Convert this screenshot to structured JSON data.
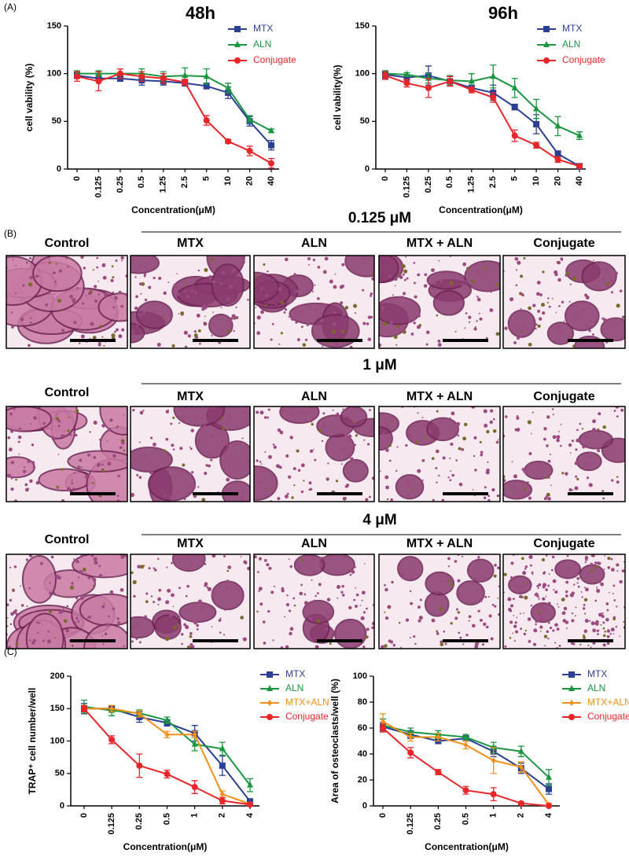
{
  "panel_labels": [
    "(A)",
    "(B)",
    "(C)"
  ],
  "chart_data": [
    {
      "type": "line",
      "title": "48h",
      "y_label": "cell vability (%)",
      "x_label": "Concentration(μM)",
      "categories": [
        "0",
        "0.125",
        "0.25",
        "0.5",
        "1.25",
        "2.5",
        "5",
        "10",
        "20",
        "40"
      ],
      "ylim": [
        0,
        150
      ],
      "yticks": [
        0,
        50,
        100,
        150
      ],
      "legend": "upper right",
      "series": [
        {
          "name": "MTX",
          "color": "#2b3f94",
          "marker": "square",
          "values": [
            98,
            95,
            95,
            93,
            92,
            90,
            87,
            80,
            50,
            25
          ],
          "errors": [
            3,
            3,
            3,
            5,
            4,
            3,
            3,
            6,
            5,
            5
          ]
        },
        {
          "name": "ALN",
          "color": "#1a9641",
          "marker": "triangle",
          "values": [
            100,
            100,
            100,
            100,
            97,
            98,
            97,
            85,
            52,
            40
          ],
          "errors": [
            3,
            3,
            5,
            5,
            5,
            8,
            8,
            5,
            4,
            2
          ]
        },
        {
          "name": "Conjugate",
          "color": "#e8262a",
          "marker": "circle",
          "values": [
            97,
            92,
            100,
            97,
            95,
            91,
            51,
            29,
            19,
            6
          ],
          "errors": [
            5,
            10,
            5,
            5,
            5,
            3,
            5,
            2,
            5,
            5
          ]
        }
      ]
    },
    {
      "type": "line",
      "title": "96h",
      "y_label": "cell vability(%)",
      "x_label": "Concentration(μM)",
      "categories": [
        "0",
        "0.125",
        "0.25",
        "0.5",
        "1.25",
        "2.5",
        "5",
        "10",
        "20",
        "40"
      ],
      "ylim": [
        0,
        150
      ],
      "yticks": [
        0,
        50,
        100,
        150
      ],
      "legend": "upper right",
      "series": [
        {
          "name": "MTX",
          "color": "#2b3f94",
          "marker": "square",
          "values": [
            99,
            96,
            98,
            92,
            85,
            80,
            65,
            47,
            16,
            3
          ],
          "errors": [
            4,
            3,
            10,
            5,
            3,
            8,
            3,
            10,
            3,
            1
          ]
        },
        {
          "name": "ALN",
          "color": "#1a9641",
          "marker": "triangle",
          "values": [
            100,
            99,
            95,
            93,
            92,
            97,
            85,
            63,
            45,
            35
          ],
          "errors": [
            3,
            2,
            5,
            5,
            8,
            12,
            10,
            10,
            10,
            4
          ]
        },
        {
          "name": "Conjugate",
          "color": "#e8262a",
          "marker": "circle",
          "values": [
            98,
            90,
            85,
            92,
            83,
            75,
            35,
            25,
            10,
            3
          ],
          "errors": [
            4,
            4,
            10,
            5,
            3,
            5,
            6,
            3,
            3,
            1
          ]
        }
      ]
    },
    {
      "type": "line",
      "y_label": "TRAP⁺ cell number/well",
      "x_label": "Concentration(μM)",
      "categories": [
        "0",
        "0.125",
        "0.25",
        "0.5",
        "1",
        "2",
        "4"
      ],
      "ylim": [
        0,
        200
      ],
      "yticks": [
        0,
        50,
        100,
        150,
        200
      ],
      "legend": "upper right",
      "series": [
        {
          "name": "MTX",
          "color": "#2b3f94",
          "marker": "square",
          "values": [
            150,
            150,
            137,
            128,
            112,
            62,
            7
          ],
          "errors": [
            8,
            5,
            8,
            5,
            12,
            15,
            3
          ]
        },
        {
          "name": "ALN",
          "color": "#1a9641",
          "marker": "triangle",
          "values": [
            153,
            147,
            143,
            132,
            95,
            88,
            32
          ],
          "errors": [
            10,
            8,
            5,
            5,
            10,
            10,
            10
          ]
        },
        {
          "name": "MTX+ALN",
          "color": "#f39019",
          "marker": "diamond",
          "values": [
            150,
            150,
            142,
            110,
            110,
            18,
            3
          ],
          "errors": [
            5,
            5,
            5,
            5,
            5,
            5,
            2
          ]
        },
        {
          "name": "Conjugate",
          "color": "#e8262a",
          "marker": "circle",
          "values": [
            150,
            102,
            62,
            49,
            29,
            8,
            2
          ],
          "errors": [
            5,
            6,
            18,
            6,
            10,
            5,
            2
          ]
        }
      ]
    },
    {
      "type": "line",
      "y_label": "Area of osteoclasts/well (%)",
      "x_label": "Concentration(μM)",
      "categories": [
        "0",
        "0.125",
        "0.25",
        "0.5",
        "1",
        "2",
        "4"
      ],
      "ylim": [
        0,
        100
      ],
      "yticks": [
        0,
        20,
        40,
        60,
        80,
        100
      ],
      "legend": "upper right",
      "series": [
        {
          "name": "MTX",
          "color": "#2b3f94",
          "marker": "square",
          "values": [
            61,
            55,
            50,
            52,
            42,
            29,
            13
          ],
          "errors": [
            3,
            3,
            2,
            2,
            4,
            4,
            4
          ]
        },
        {
          "name": "ALN",
          "color": "#1a9641",
          "marker": "triangle",
          "values": [
            62,
            57,
            55,
            53,
            45,
            42,
            22
          ],
          "errors": [
            5,
            3,
            3,
            2,
            4,
            4,
            6
          ]
        },
        {
          "name": "MTX+ALN",
          "color": "#f39019",
          "marker": "diamond",
          "values": [
            65,
            53,
            53,
            47,
            35,
            30,
            1
          ],
          "errors": [
            6,
            3,
            3,
            3,
            10,
            4,
            1
          ]
        },
        {
          "name": "Conjugate",
          "color": "#e8262a",
          "marker": "circle",
          "values": [
            60,
            41,
            26,
            12,
            9,
            2,
            0
          ],
          "errors": [
            3,
            4,
            2,
            3,
            5,
            1,
            0
          ]
        }
      ]
    }
  ],
  "micrographs": [
    {
      "concentration": "0.125 μM",
      "labels": [
        "Control",
        "MTX",
        "ALN",
        "MTX + ALN",
        "Conjugate"
      ]
    },
    {
      "concentration": "1 μM",
      "labels": [
        "Control",
        "MTX",
        "ALN",
        "MTX + ALN",
        "Conjugate"
      ]
    },
    {
      "concentration": "4 μM",
      "labels": [
        "Control",
        "MTX",
        "ALN",
        "MTX + ALN",
        "Conjugate"
      ]
    }
  ]
}
